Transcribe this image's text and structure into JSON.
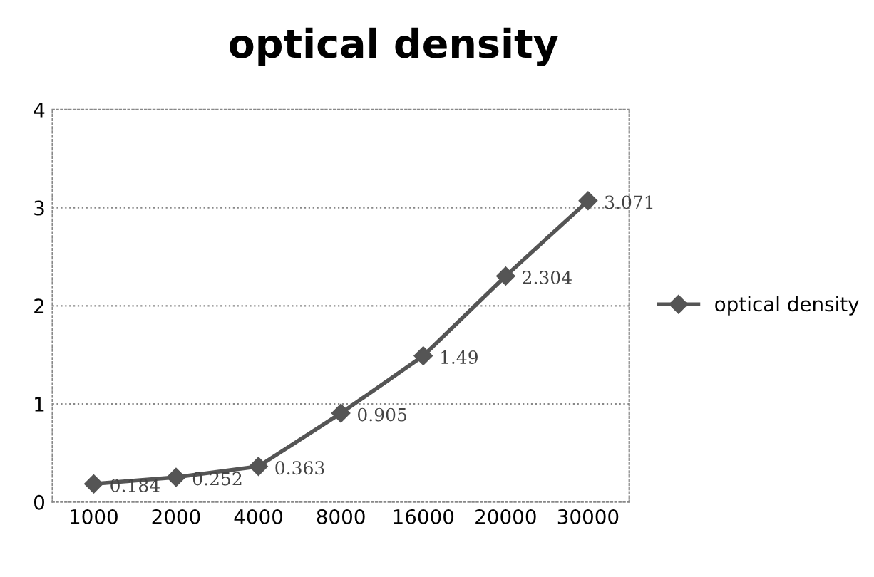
{
  "chart_data": {
    "type": "line",
    "title": "optical density",
    "categories": [
      "1000",
      "2000",
      "4000",
      "8000",
      "16000",
      "20000",
      "30000"
    ],
    "series": [
      {
        "name": "optical density",
        "color": "#555555",
        "values": [
          0.184,
          0.252,
          0.363,
          0.905,
          1.49,
          2.304,
          3.071
        ]
      }
    ],
    "ylim": [
      0,
      4
    ],
    "yticks": [
      0,
      1,
      2,
      3,
      4
    ],
    "grid": "y",
    "legend": "right",
    "marker": "diamond",
    "line_style": "solid",
    "data_labels": true
  }
}
